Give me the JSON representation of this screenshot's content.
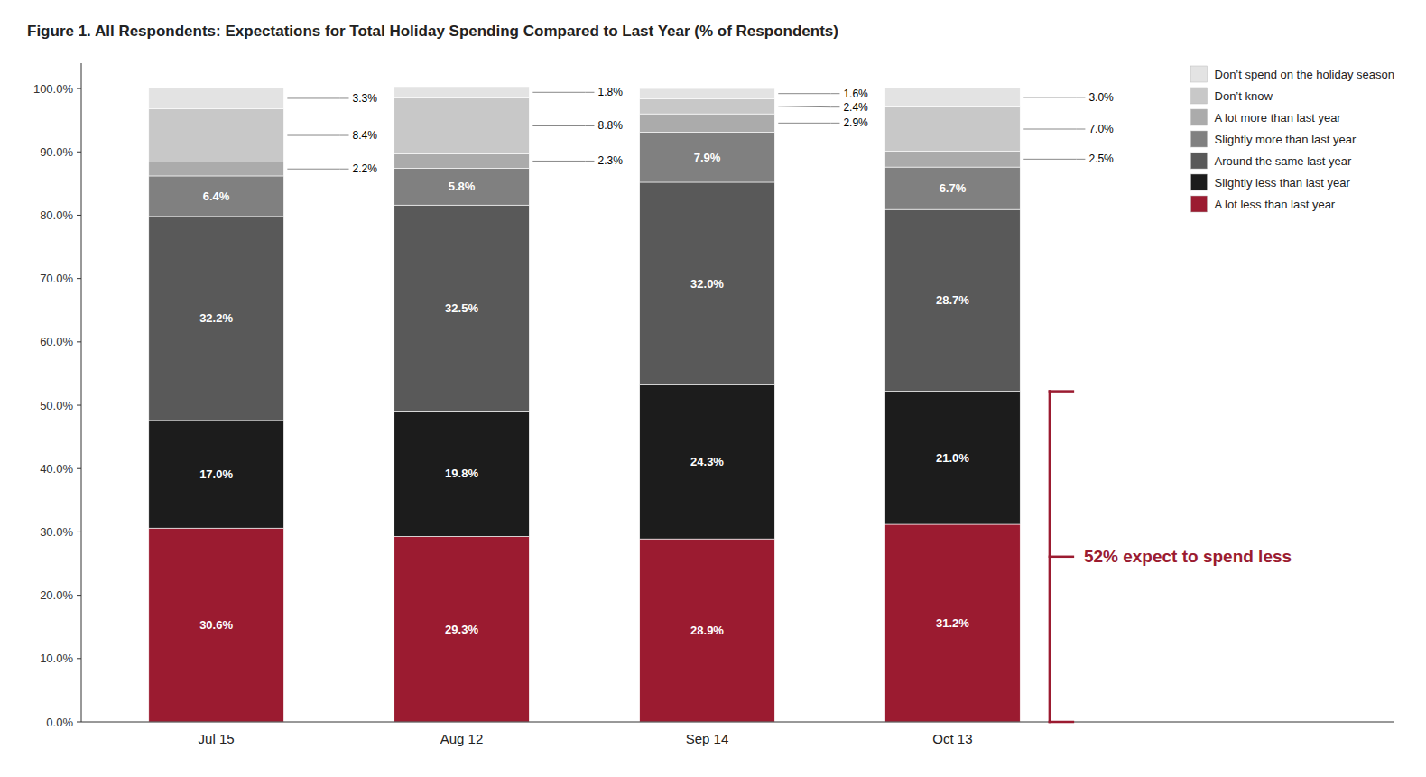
{
  "chart_data": {
    "type": "bar",
    "stacked": true,
    "title": "Figure 1. All Respondents: Expectations for Total Holiday Spending Compared to Last Year (% of Respondents)",
    "categories": [
      "Jul 15",
      "Aug 12",
      "Sep 14",
      "Oct 13"
    ],
    "series": [
      {
        "name": "A lot less than last year",
        "color": "#9B1B30",
        "values": [
          30.6,
          29.3,
          28.9,
          31.2
        ],
        "value_labels": [
          "30.6%",
          "29.3%",
          "28.9%",
          "31.2%"
        ]
      },
      {
        "name": "Slightly less than last year",
        "color": "#1C1C1C",
        "values": [
          17.0,
          19.8,
          24.3,
          21.0
        ],
        "value_labels": [
          "17.0%",
          "19.8%",
          "24.3%",
          "21.0%"
        ]
      },
      {
        "name": "Around the same last year",
        "color": "#595959",
        "values": [
          32.2,
          32.5,
          32.0,
          28.7
        ],
        "value_labels": [
          "32.2%",
          "32.5%",
          "32.0%",
          "28.7%"
        ]
      },
      {
        "name": "Slightly more than last year",
        "color": "#808080",
        "values": [
          6.4,
          5.8,
          7.9,
          6.7
        ],
        "value_labels": [
          "6.4%",
          "5.8%",
          "7.9%",
          "6.7%"
        ]
      },
      {
        "name": "A lot more than last year",
        "color": "#ABABAB",
        "values": [
          2.2,
          2.3,
          2.9,
          2.5
        ],
        "value_labels": [
          "2.2%",
          "2.3%",
          "2.9%",
          "2.5%"
        ]
      },
      {
        "name": "Don’t know",
        "color": "#C8C8C8",
        "values": [
          8.4,
          8.8,
          2.4,
          7.0
        ],
        "value_labels": [
          "8.4%",
          "8.8%",
          "2.4%",
          "7.0%"
        ]
      },
      {
        "name": "Don’t spend on the holiday season",
        "color": "#E3E3E3",
        "values": [
          3.3,
          1.8,
          1.6,
          3.0
        ],
        "value_labels": [
          "3.3%",
          "1.8%",
          "1.6%",
          "3.0%"
        ]
      }
    ],
    "ylim": [
      0,
      104
    ],
    "yticks": [
      {
        "value": 0,
        "label": "0.0%"
      },
      {
        "value": 10,
        "label": "10.0%"
      },
      {
        "value": 20,
        "label": "20.0%"
      },
      {
        "value": 30,
        "label": "30.0%"
      },
      {
        "value": 40,
        "label": "40.0%"
      },
      {
        "value": 50,
        "label": "50.0%"
      },
      {
        "value": 60,
        "label": "60.0%"
      },
      {
        "value": 70,
        "label": "70.0%"
      },
      {
        "value": 80,
        "label": "80.0%"
      },
      {
        "value": 90,
        "label": "90.0%"
      },
      {
        "value": 100,
        "label": "100.0%"
      }
    ],
    "grid": false,
    "legend": "upper right",
    "data_labels": true,
    "annotation": "52% expect to spend less"
  }
}
